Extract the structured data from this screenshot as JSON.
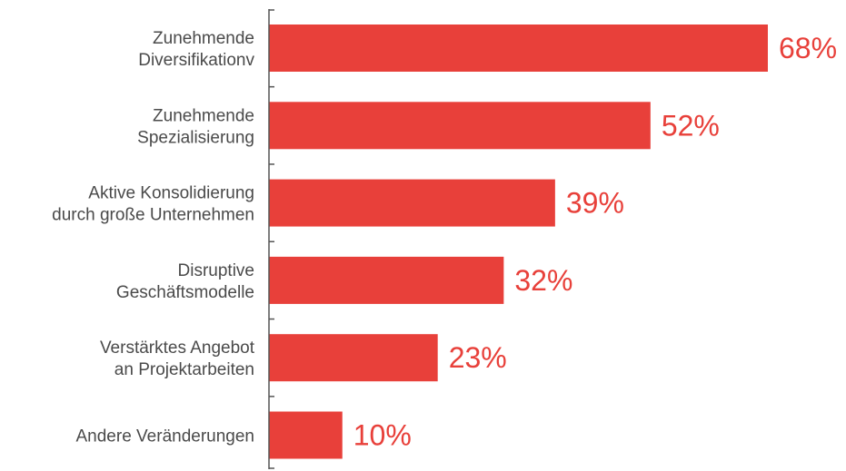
{
  "chart_data": {
    "type": "bar",
    "orientation": "horizontal",
    "categories": [
      [
        "Zunehmende",
        "Diversifikationv"
      ],
      [
        "Zunehmende",
        "Spezialisierung"
      ],
      [
        "Aktive Konsolidierung",
        "durch große Unternehmen"
      ],
      [
        "Disruptive",
        "Geschäftsmodelle"
      ],
      [
        "Verstärktes Angebot",
        "an Projektarbeiten"
      ],
      [
        "Andere Veränderungen"
      ]
    ],
    "values": [
      68,
      52,
      39,
      32,
      23,
      10
    ],
    "value_labels": [
      "68%",
      "52%",
      "39%",
      "32%",
      "23%",
      "10%"
    ],
    "unit": "%",
    "xlim": [
      0,
      68
    ],
    "grid": false,
    "legend": "none",
    "bar_color": "#e8403a",
    "label_color": "#e8403a",
    "text_color": "#4a4a4a",
    "axis_color": "#555555"
  }
}
